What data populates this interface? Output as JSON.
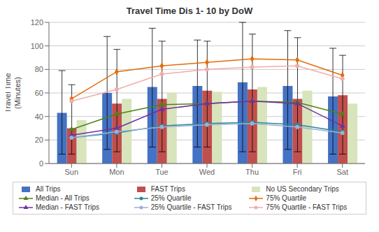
{
  "chart_data": {
    "type": "bar",
    "title": "Travel Time Dis 1- 10 by DoW",
    "ylabel": "Travel Time\n(Minutes)",
    "categories": [
      "Sun",
      "Mon",
      "Tue",
      "Wed",
      "Thu",
      "Fri",
      "Sat"
    ],
    "series": [
      {
        "name": "All Trips",
        "type": "bar",
        "color": "#4472C4",
        "values": [
          43,
          60,
          65,
          66,
          69,
          66,
          57
        ],
        "error_top": [
          79,
          108,
          115,
          105,
          120,
          113,
          98
        ],
        "error_bottom": [
          8,
          12,
          14,
          14,
          10,
          12,
          8
        ]
      },
      {
        "name": "FAST Trips",
        "type": "bar",
        "color": "#C0504D",
        "values": [
          30,
          51,
          55,
          62,
          63,
          55,
          58
        ],
        "error_top": [
          67,
          97,
          104,
          104,
          110,
          107,
          92
        ],
        "error_bottom": [
          8,
          10,
          10,
          14,
          10,
          10,
          8
        ]
      },
      {
        "name": "No US Secondary Trips",
        "type": "bar",
        "color": "#D7E4BC",
        "values": [
          37,
          55,
          60,
          61,
          65,
          62,
          51
        ]
      },
      {
        "name": "Median - All Trips",
        "type": "line",
        "color": "#4F8117",
        "marker": "triangle",
        "values": [
          29,
          42,
          50,
          51,
          53,
          52,
          42
        ]
      },
      {
        "name": "25% Quartile",
        "type": "line",
        "color": "#31849B",
        "marker": "circle",
        "values": [
          22,
          26,
          32,
          34,
          35,
          33,
          27
        ]
      },
      {
        "name": "75% Quartile",
        "type": "line",
        "color": "#E36C09",
        "marker": "diamond",
        "values": [
          55,
          78,
          83,
          86,
          89,
          88,
          75
        ]
      },
      {
        "name": "Median - FAST Trips",
        "type": "line",
        "color": "#7030A0",
        "marker": "triangle",
        "values": [
          24,
          30,
          46,
          51,
          53,
          51,
          32
        ]
      },
      {
        "name": "25% Quartile - FAST Trips",
        "type": "line",
        "color": "#95B3D7",
        "marker": "circle",
        "values": [
          22,
          27,
          31,
          33,
          34,
          31,
          26
        ]
      },
      {
        "name": "75% Quartile - FAST Trips",
        "type": "line",
        "color": "#F2ACAB",
        "marker": "circle",
        "values": [
          53,
          63,
          76,
          80,
          82,
          83,
          72
        ]
      }
    ],
    "ylim": [
      0,
      120
    ],
    "yticks": [
      0,
      20,
      40,
      60,
      80,
      100,
      120
    ],
    "grid": true,
    "legend": "bottom"
  }
}
